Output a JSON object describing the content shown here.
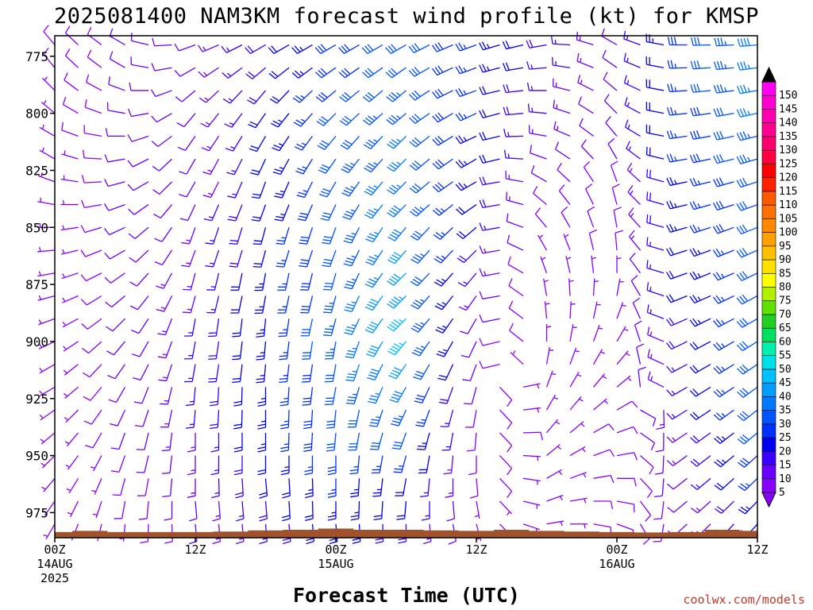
{
  "title": "2025081400 NAM3KM forecast wind profile (kt) for KMSP",
  "credit": "coolwx.com/models",
  "chart_data": {
    "type": "wind-barb time-height",
    "xlabel": "Forecast Time (UTC)",
    "x_unit": "forecast hour from 2025-08-14 00Z",
    "xlim": [
      0,
      60
    ],
    "x_ticks": [
      {
        "hour": 0,
        "lines": [
          "00Z",
          "14AUG",
          "2025"
        ]
      },
      {
        "hour": 12,
        "lines": [
          "12Z"
        ]
      },
      {
        "hour": 24,
        "lines": [
          "00Z",
          "15AUG"
        ]
      },
      {
        "hour": 36,
        "lines": [
          "12Z"
        ]
      },
      {
        "hour": 48,
        "lines": [
          "00Z",
          "16AUG"
        ]
      },
      {
        "hour": 60,
        "lines": [
          "12Z"
        ]
      }
    ],
    "ylabel": "",
    "y_unit": "hPa",
    "ylim": [
      986,
      766
    ],
    "y_ticks": [
      775,
      800,
      825,
      850,
      875,
      900,
      925,
      950,
      975
    ],
    "colorbar": {
      "unit": "kt",
      "labels": [
        5,
        10,
        15,
        20,
        25,
        30,
        35,
        40,
        45,
        50,
        55,
        60,
        65,
        70,
        75,
        80,
        85,
        90,
        95,
        100,
        105,
        110,
        115,
        120,
        125,
        130,
        135,
        140,
        145,
        150
      ],
      "colors": [
        "#8a00ff",
        "#6a00ff",
        "#3a00ff",
        "#0000ee",
        "#0030ff",
        "#0055ff",
        "#0078ff",
        "#009cff",
        "#00c0ff",
        "#00e0e8",
        "#00f0b0",
        "#00e060",
        "#20d020",
        "#60e000",
        "#b0f000",
        "#ffff00",
        "#ffe000",
        "#ffc000",
        "#ffa000",
        "#ff8800",
        "#ff7000",
        "#ff5800",
        "#ff2000",
        "#ff0000",
        "#ff0040",
        "#ff0070",
        "#ff0090",
        "#ff00b0",
        "#ff00d0",
        "#ff00f0"
      ],
      "end_arrows": {
        "low": "#8a00ff",
        "high": "#000000"
      }
    },
    "surface_pressure": {
      "hours": [
        0,
        3,
        6,
        9,
        12,
        15,
        18,
        21,
        24,
        27,
        30,
        33,
        36,
        39,
        42,
        45,
        48,
        51,
        54,
        57,
        60
      ],
      "hpa": [
        983.5,
        983.0,
        983.5,
        983.5,
        983.5,
        983.3,
        982.8,
        982.5,
        982.0,
        982.5,
        982.5,
        982.8,
        983.0,
        982.5,
        983.0,
        983.3,
        983.5,
        983.7,
        983.5,
        982.5,
        983.0
      ]
    },
    "terrain_color": "#a0522d",
    "barb_levels_hpa": [
      770,
      780,
      790,
      800,
      810,
      820,
      830,
      840,
      850,
      860,
      870,
      880,
      890,
      900,
      910,
      920,
      930,
      940,
      950,
      960,
      970,
      980
    ],
    "barb_hours": [
      0,
      2,
      4,
      6,
      8,
      10,
      12,
      14,
      16,
      18,
      20,
      22,
      24,
      26,
      28,
      30,
      32,
      34,
      36,
      38,
      40,
      42,
      44,
      46,
      48,
      50,
      52,
      54,
      56,
      58,
      60
    ],
    "series": [
      {
        "hour": 0,
        "dir": [
          320,
          320,
          315,
          310,
          300,
          300,
          290,
          280,
          270,
          265,
          260,
          255,
          250,
          245,
          240,
          240,
          235,
          230,
          225,
          220,
          215,
          210
        ],
        "spd": [
          8,
          8,
          7,
          7,
          7,
          6,
          6,
          6,
          6,
          6,
          6,
          6,
          6,
          6,
          6,
          6,
          6,
          5,
          5,
          5,
          5,
          5
        ]
      },
      {
        "hour": 6,
        "dir": [
          300,
          300,
          290,
          280,
          270,
          260,
          255,
          250,
          245,
          240,
          235,
          230,
          225,
          220,
          215,
          210,
          205,
          200,
          200,
          195,
          190,
          185
        ],
        "spd": [
          10,
          10,
          10,
          10,
          10,
          10,
          10,
          10,
          10,
          10,
          10,
          10,
          10,
          10,
          10,
          10,
          10,
          10,
          8,
          8,
          8,
          7
        ]
      },
      {
        "hour": 12,
        "dir": [
          250,
          240,
          230,
          220,
          215,
          210,
          210,
          205,
          200,
          200,
          195,
          195,
          190,
          190,
          190,
          185,
          185,
          180,
          180,
          180,
          175,
          175
        ],
        "spd": [
          12,
          12,
          12,
          12,
          12,
          12,
          12,
          12,
          13,
          13,
          14,
          14,
          15,
          15,
          15,
          15,
          15,
          14,
          14,
          13,
          12,
          11
        ]
      },
      {
        "hour": 18,
        "dir": [
          240,
          230,
          220,
          215,
          210,
          205,
          200,
          200,
          195,
          195,
          190,
          190,
          185,
          185,
          185,
          180,
          180,
          180,
          180,
          175,
          175,
          175
        ],
        "spd": [
          18,
          18,
          19,
          20,
          20,
          20,
          20,
          21,
          22,
          22,
          23,
          23,
          24,
          24,
          24,
          24,
          24,
          23,
          22,
          20,
          18,
          16
        ]
      },
      {
        "hour": 24,
        "dir": [
          240,
          235,
          230,
          225,
          220,
          215,
          210,
          205,
          200,
          200,
          195,
          195,
          195,
          190,
          190,
          190,
          185,
          185,
          180,
          180,
          180,
          175
        ],
        "spd": [
          28,
          28,
          29,
          30,
          30,
          31,
          31,
          32,
          32,
          32,
          32,
          33,
          33,
          33,
          32,
          32,
          31,
          30,
          28,
          26,
          24,
          22
        ]
      },
      {
        "hour": 30,
        "dir": [
          240,
          235,
          230,
          230,
          225,
          225,
          225,
          225,
          220,
          220,
          225,
          225,
          225,
          220,
          215,
          210,
          205,
          200,
          195,
          190,
          185,
          180
        ],
        "spd": [
          32,
          32,
          33,
          34,
          35,
          36,
          37,
          38,
          38,
          40,
          40,
          44,
          46,
          46,
          42,
          38,
          34,
          30,
          26,
          22,
          20,
          18
        ]
      },
      {
        "hour": 36,
        "dir": [
          250,
          250,
          250,
          245,
          245,
          240,
          240,
          235,
          230,
          225,
          220,
          215,
          210,
          205,
          200,
          195,
          190,
          185,
          180,
          175,
          170,
          165
        ],
        "spd": [
          26,
          26,
          25,
          25,
          24,
          24,
          23,
          22,
          20,
          18,
          16,
          14,
          12,
          11,
          10,
          10,
          9,
          9,
          8,
          8,
          7,
          7
        ]
      },
      {
        "hour": 42,
        "dir": [
          260,
          265,
          270,
          275,
          280,
          290,
          300,
          310,
          320,
          330,
          340,
          350,
          355,
          360,
          10,
          20,
          30,
          40,
          50,
          60,
          70,
          80
        ],
        "spd": [
          18,
          17,
          16,
          15,
          14,
          12,
          10,
          9,
          8,
          7,
          6,
          6,
          6,
          6,
          6,
          6,
          6,
          7,
          7,
          7,
          7,
          7
        ]
      },
      {
        "hour": 48,
        "dir": [
          300,
          305,
          310,
          315,
          320,
          330,
          340,
          345,
          350,
          355,
          360,
          10,
          20,
          30,
          40,
          50,
          60,
          70,
          80,
          90,
          100,
          110
        ],
        "spd": [
          12,
          12,
          11,
          11,
          10,
          10,
          9,
          9,
          8,
          8,
          7,
          7,
          7,
          7,
          7,
          7,
          8,
          8,
          8,
          8,
          8,
          8
        ]
      },
      {
        "hour": 54,
        "dir": [
          270,
          268,
          266,
          264,
          262,
          260,
          258,
          256,
          254,
          252,
          250,
          248,
          246,
          244,
          242,
          240,
          238,
          236,
          234,
          232,
          230,
          228
        ],
        "spd": [
          28,
          27,
          27,
          26,
          25,
          25,
          24,
          24,
          23,
          22,
          21,
          20,
          19,
          18,
          17,
          16,
          15,
          14,
          13,
          12,
          10,
          9
        ]
      },
      {
        "hour": 60,
        "dir": [
          265,
          262,
          260,
          258,
          256,
          254,
          252,
          250,
          248,
          246,
          244,
          242,
          240,
          238,
          236,
          234,
          232,
          230,
          228,
          226,
          224,
          222
        ],
        "spd": [
          38,
          37,
          36,
          35,
          34,
          33,
          32,
          31,
          31,
          30,
          30,
          30,
          30,
          30,
          30,
          30,
          30,
          30,
          28,
          26,
          24,
          22
        ]
      }
    ]
  }
}
